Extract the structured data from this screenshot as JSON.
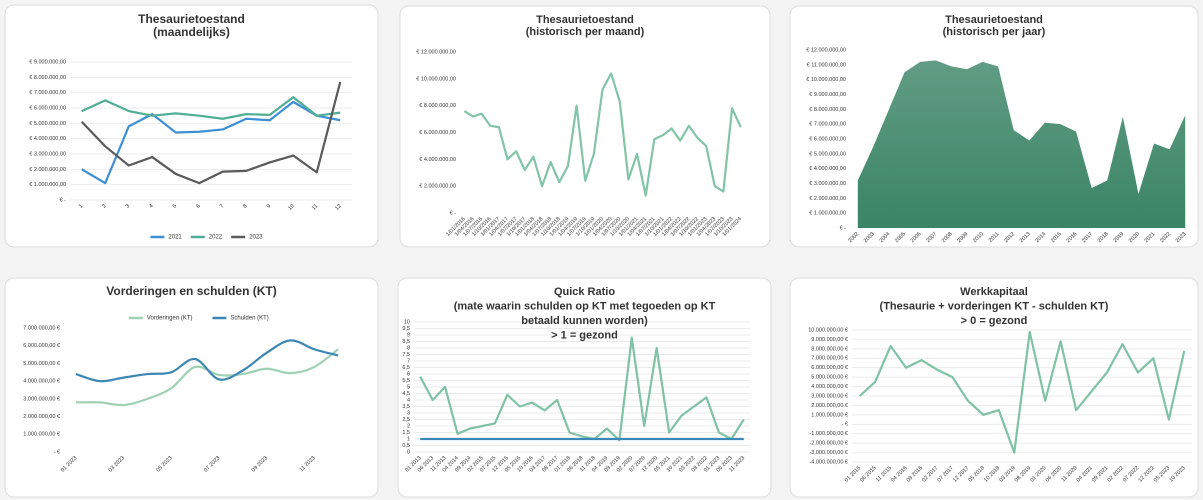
{
  "chart_data": [
    {
      "type": "line",
      "title": [
        "Thesaurietoestand",
        "(maandelijks)"
      ],
      "grid": true,
      "legend": "bottom",
      "categories": [
        "1",
        "2",
        "3",
        "4",
        "5",
        "6",
        "7",
        "8",
        "9",
        "10",
        "11",
        "12"
      ],
      "series": [
        {
          "name": "2021",
          "color": "#3d8fd6",
          "values": [
            2000000,
            1100000,
            4800000,
            5600000,
            4400000,
            4450000,
            4600000,
            5300000,
            5200000,
            6400000,
            5500000,
            5200000
          ]
        },
        {
          "name": "2022",
          "color": "#4fae95",
          "values": [
            5800000,
            6500000,
            5800000,
            5500000,
            5650000,
            5500000,
            5300000,
            5600000,
            5550000,
            6700000,
            5500000,
            5700000
          ]
        },
        {
          "name": "2023",
          "color": "#5a5a5a",
          "values": [
            5100000,
            3500000,
            2250000,
            2800000,
            1700000,
            1100000,
            1850000,
            1900000,
            2450000,
            2900000,
            1800000,
            7700000
          ]
        }
      ],
      "ylim": [
        0,
        9000000
      ],
      "yticks": [
        {
          "value": 0,
          "label": "€ -"
        },
        {
          "value": 1000000,
          "label": "€ 1.000.000,00"
        },
        {
          "value": 2000000,
          "label": "€ 2.000.000,00"
        },
        {
          "value": 3000000,
          "label": "€ 3.000.000,00"
        },
        {
          "value": 4000000,
          "label": "€ 4.000.000,00"
        },
        {
          "value": 5000000,
          "label": "€ 5.000.000,00"
        },
        {
          "value": 6000000,
          "label": "€ 6.000.000,00"
        },
        {
          "value": 7000000,
          "label": "€ 7.000.000,00"
        },
        {
          "value": 8000000,
          "label": "€ 8.000.000,00"
        },
        {
          "value": 9000000,
          "label": "€ 9.000.000,00"
        }
      ]
    },
    {
      "type": "line",
      "title": [
        "Thesaurietoestand",
        "(historisch per maand)"
      ],
      "grid": false,
      "categories": [
        "1/01/2016",
        "1/04/2016",
        "1/07/2016",
        "1/10/2016",
        "1/01/2017",
        "1/04/2017",
        "1/07/2017",
        "1/10/2017",
        "1/01/2018",
        "1/04/2018",
        "1/07/2018",
        "1/10/2018",
        "1/01/2019",
        "1/04/2019",
        "1/07/2019",
        "1/10/2019",
        "1/01/2020",
        "1/04/2020",
        "1/07/2020",
        "1/10/2020",
        "1/01/2021",
        "1/04/2021",
        "1/07/2021",
        "1/10/2021",
        "1/01/2022",
        "1/04/2022",
        "1/07/2022",
        "1/10/2022",
        "1/01/2023",
        "1/04/2023",
        "1/07/2023",
        "1/10/2023",
        "1/01/2024"
      ],
      "series": [
        {
          "color": "#82c4a8",
          "values": [
            7600000,
            7200000,
            7400000,
            6500000,
            6400000,
            4000000,
            4600000,
            3200000,
            4200000,
            2000000,
            3800000,
            2300000,
            3500000,
            8000000,
            2400000,
            4400000,
            9200000,
            10400000,
            8300000,
            2500000,
            4400000,
            1300000,
            5500000,
            5800000,
            6300000,
            5400000,
            6500000,
            5600000,
            5000000,
            2000000,
            1600000,
            7800000,
            6400000
          ]
        }
      ],
      "ylim": [
        0,
        12000000
      ],
      "yticks": [
        {
          "value": 0,
          "label": "€ -"
        },
        {
          "value": 2000000,
          "label": "€ 2.000.000,00"
        },
        {
          "value": 4000000,
          "label": "€ 4.000.000,00"
        },
        {
          "value": 6000000,
          "label": "€ 6.000.000,00"
        },
        {
          "value": 8000000,
          "label": "€ 8.000.000,00"
        },
        {
          "value": 10000000,
          "label": "€ 10.000.000,00"
        },
        {
          "value": 12000000,
          "label": "€ 12.000.000,00"
        }
      ]
    },
    {
      "type": "area",
      "title": [
        "Thesaurietoestand",
        "(historisch per jaar)"
      ],
      "grid": false,
      "categories": [
        "2002",
        "2003",
        "2004",
        "2005",
        "2006",
        "2007",
        "2008",
        "2009",
        "2010",
        "2011",
        "2012",
        "2013",
        "2014",
        "2015",
        "2016",
        "2017",
        "2018",
        "2019",
        "2020",
        "2021",
        "2022",
        "2023"
      ],
      "series": [
        {
          "color": "#3a8465",
          "values": [
            3200000,
            5500000,
            8000000,
            10500000,
            11200000,
            11300000,
            10900000,
            10700000,
            11200000,
            10900000,
            6600000,
            5900000,
            7100000,
            7000000,
            6500000,
            2700000,
            3200000,
            7500000,
            2300000,
            5700000,
            5300000,
            7600000
          ]
        }
      ],
      "ylim": [
        0,
        12000000
      ],
      "yticks": [
        {
          "value": 0,
          "label": "€ -"
        },
        {
          "value": 1000000,
          "label": "€ 1.000.000,00"
        },
        {
          "value": 2000000,
          "label": "€ 2.000.000,00"
        },
        {
          "value": 3000000,
          "label": "€ 3.000.000,00"
        },
        {
          "value": 4000000,
          "label": "€ 4.000.000,00"
        },
        {
          "value": 5000000,
          "label": "€ 5.000.000,00"
        },
        {
          "value": 6000000,
          "label": "€ 6.000.000,00"
        },
        {
          "value": 7000000,
          "label": "€ 7.000.000,00"
        },
        {
          "value": 8000000,
          "label": "€ 8.000.000,00"
        },
        {
          "value": 9000000,
          "label": "€ 9.000.000,00"
        },
        {
          "value": 10000000,
          "label": "€ 10.000.000,00"
        },
        {
          "value": 11000000,
          "label": "€ 11.000.000,00"
        },
        {
          "value": 12000000,
          "label": "€ 12.000.000,00"
        }
      ]
    },
    {
      "type": "line",
      "title": [
        "Vorderingen en schulden (KT)"
      ],
      "grid": false,
      "legend": "top",
      "smooth": true,
      "categories": [
        "01 2023",
        null,
        "03 2023",
        null,
        "05 2023",
        null,
        "07 2023",
        null,
        "09 2023",
        null,
        "11 2023",
        null
      ],
      "series": [
        {
          "name": "Vorderingen (KT)",
          "color": "#9fd0b4",
          "values": [
            2800000,
            2800000,
            2650000,
            3000000,
            3600000,
            4800000,
            4350000,
            4400000,
            4700000,
            4450000,
            4800000,
            5800000
          ]
        },
        {
          "name": "Schulden (KT)",
          "color": "#3d87b5",
          "values": [
            4400000,
            4000000,
            4200000,
            4400000,
            4500000,
            5250000,
            4100000,
            4600000,
            5600000,
            6300000,
            5800000,
            5450000
          ]
        }
      ],
      "ylim": [
        0,
        7000000
      ],
      "yticks": [
        {
          "value": 0,
          "label": "- €"
        },
        {
          "value": 1000000,
          "label": "1.000.000,00 €"
        },
        {
          "value": 2000000,
          "label": "2.000.000,00 €"
        },
        {
          "value": 3000000,
          "label": "3.000.000,00 €"
        },
        {
          "value": 4000000,
          "label": "4.000.000,00 €"
        },
        {
          "value": 5000000,
          "label": "5.000.000,00 €"
        },
        {
          "value": 6000000,
          "label": "6.000.000,00 €"
        },
        {
          "value": 7000000,
          "label": "7.000.000,00 €"
        }
      ]
    },
    {
      "type": "line",
      "title": [
        "Quick Ratio",
        "(mate waarin schulden op KT met tegoeden op KT",
        "betaald kunnen worden)",
        "> 1 = gezond"
      ],
      "grid": true,
      "categories": [
        "01 2013",
        "06 2013",
        "11 2013",
        "04 2014",
        "09 2014",
        "02 2015",
        "07 2015",
        "12 2015",
        "05 2016",
        "10 2016",
        "03 2017",
        "08 2017",
        "01 2018",
        "06 2018",
        "11 2018",
        "04 2019",
        "09 2019",
        "02 2020",
        "07 2020",
        "12 2020",
        "05 2021",
        "10 2021",
        "03 2022",
        "08 2022",
        "01 2023",
        "06 2023",
        "11 2023"
      ],
      "series": [
        {
          "color": "#7fc2a5",
          "values": [
            5.8,
            4.0,
            5.0,
            1.4,
            1.8,
            2.0,
            2.2,
            4.4,
            3.5,
            3.8,
            3.2,
            4.0,
            1.5,
            1.2,
            1.0,
            1.8,
            0.9,
            8.8,
            2.0,
            8.0,
            1.5,
            2.8,
            3.5,
            4.2,
            1.5,
            1.0,
            2.5
          ]
        },
        {
          "color": "#3d87b5",
          "values": [
            1,
            1,
            1,
            1,
            1,
            1,
            1,
            1,
            1,
            1,
            1,
            1,
            1,
            1,
            1,
            1,
            1,
            1,
            1,
            1,
            1,
            1,
            1,
            1,
            1,
            1,
            1
          ]
        }
      ],
      "ylim": [
        0,
        10
      ],
      "yticks": [
        0,
        {
          "value": 0.5,
          "label": "0,5"
        },
        1,
        {
          "value": 1.5,
          "label": "1,5"
        },
        2,
        {
          "value": 2.5,
          "label": "2,5"
        },
        3,
        {
          "value": 3.5,
          "label": "3,5"
        },
        4,
        {
          "value": 4.5,
          "label": "4,5"
        },
        5,
        {
          "value": 5.5,
          "label": "5,5"
        },
        6,
        {
          "value": 6.5,
          "label": "6,5"
        },
        7,
        {
          "value": 7.5,
          "label": "7,5"
        },
        8,
        {
          "value": 8.5,
          "label": "8,5"
        },
        9,
        {
          "value": 9.5,
          "label": "9,5"
        },
        10
      ]
    },
    {
      "type": "line",
      "title": [
        "Werkkapitaal",
        "(Thesaurie + vorderingen KT - schulden KT)",
        "> 0 = gezond"
      ],
      "grid": true,
      "categories": [
        "01 2015",
        "06 2015",
        "11 2015",
        "04 2016",
        "09 2016",
        "02 2017",
        "07 2017",
        "12 2017",
        "05 2018",
        "10 2018",
        "03 2019",
        "08 2019",
        "01 2020",
        "06 2020",
        "11 2020",
        "04 2021",
        "09 2021",
        "02 2022",
        "07 2022",
        "12 2022",
        "05 2023",
        "10 2023"
      ],
      "series": [
        {
          "color": "#7fc2a5",
          "values": [
            3000000,
            4500000,
            8300000,
            6000000,
            6800000,
            5800000,
            5000000,
            2500000,
            1000000,
            1500000,
            -3000000,
            9800000,
            2500000,
            8800000,
            1500000,
            3500000,
            5500000,
            8500000,
            5500000,
            7000000,
            500000,
            7800000
          ]
        }
      ],
      "ylim": [
        -4000000,
        10000000
      ],
      "yticks": [
        {
          "value": -4000000,
          "label": "-4.000.000,00 €"
        },
        {
          "value": -3000000,
          "label": "-3.000.000,00 €"
        },
        {
          "value": -2000000,
          "label": "-2.000.000,00 €"
        },
        {
          "value": -1000000,
          "label": "-1.000.000,00 €"
        },
        {
          "value": 0,
          "label": "- €"
        },
        {
          "value": 1000000,
          "label": "1.000.000,00 €"
        },
        {
          "value": 2000000,
          "label": "2.000.000,00 €"
        },
        {
          "value": 3000000,
          "label": "3.000.000,00 €"
        },
        {
          "value": 4000000,
          "label": "4.000.000,00 €"
        },
        {
          "value": 5000000,
          "label": "5.000.000,00 €"
        },
        {
          "value": 6000000,
          "label": "6.000.000,00 €"
        },
        {
          "value": 7000000,
          "label": "7.000.000,00 €"
        },
        {
          "value": 8000000,
          "label": "8.000.000,00 €"
        },
        {
          "value": 9000000,
          "label": "9.000.000,00 €"
        },
        {
          "value": 10000000,
          "label": "10.000.000,00 €"
        }
      ]
    }
  ]
}
